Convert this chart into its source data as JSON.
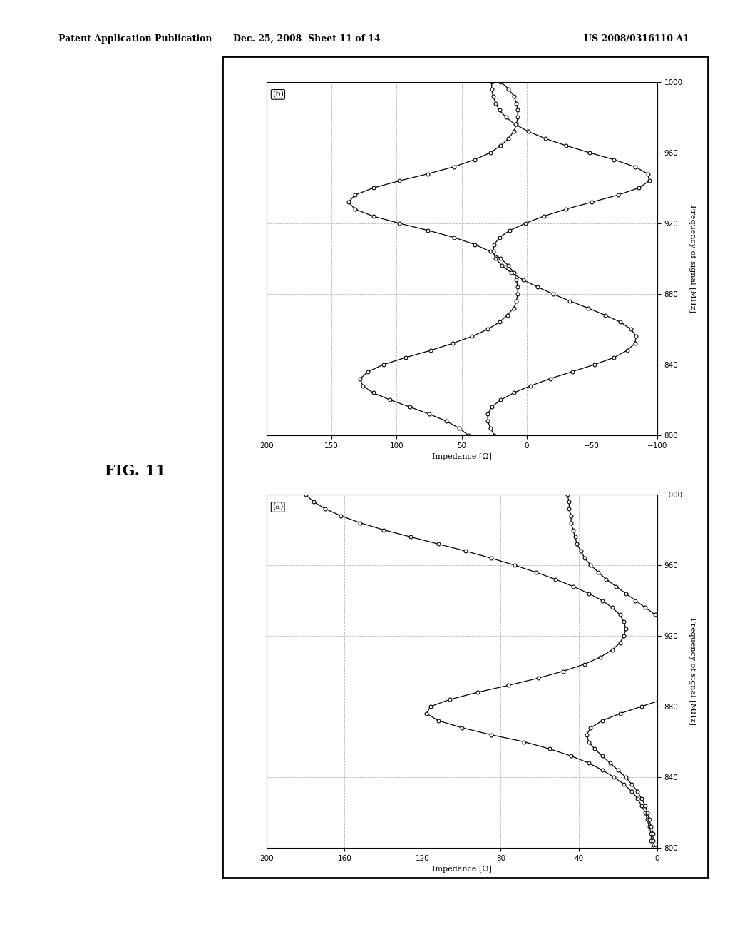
{
  "header_left": "Patent Application Publication",
  "header_mid": "Dec. 25, 2008  Sheet 11 of 14",
  "header_right": "US 2008/0316110 A1",
  "fig_label": "FIG. 11",
  "background_color": "#ffffff",
  "grid_color": "#999999",
  "freq_min": 800,
  "freq_max": 1000,
  "freq_ticks": [
    800,
    840,
    880,
    920,
    960,
    1000
  ],
  "x_label": "Frequency of signal [MHz]",
  "y_label": "Impedance [Ω]",
  "ylim_a": [
    0,
    200
  ],
  "ylim_b": [
    -100,
    200
  ],
  "yticks_a": [
    0,
    40,
    80,
    120,
    160,
    200
  ],
  "yticks_b": [
    -100,
    -50,
    0,
    50,
    100,
    150,
    200
  ],
  "freq_a": [
    800,
    804,
    808,
    812,
    816,
    820,
    824,
    828,
    832,
    836,
    840,
    844,
    848,
    852,
    856,
    860,
    864,
    868,
    872,
    876,
    880,
    884,
    888,
    892,
    896,
    900,
    904,
    908,
    912,
    916,
    920,
    924,
    928,
    932,
    936,
    940,
    944,
    948,
    952,
    956,
    960,
    964,
    968,
    972,
    976,
    980,
    984,
    988,
    992,
    996,
    1000
  ],
  "real_a": [
    2,
    3,
    3,
    4,
    5,
    6,
    8,
    10,
    13,
    17,
    22,
    28,
    35,
    44,
    55,
    68,
    85,
    100,
    112,
    118,
    116,
    106,
    92,
    76,
    61,
    48,
    37,
    29,
    23,
    19,
    17,
    16,
    17,
    19,
    23,
    28,
    35,
    43,
    52,
    62,
    73,
    85,
    98,
    112,
    126,
    140,
    152,
    162,
    170,
    176,
    180
  ],
  "imag_a": [
    1,
    2,
    2,
    3,
    4,
    5,
    6,
    8,
    10,
    13,
    16,
    20,
    24,
    28,
    32,
    35,
    36,
    34,
    28,
    19,
    8,
    -3,
    -13,
    -21,
    -26,
    -29,
    -29,
    -27,
    -24,
    -19,
    -14,
    -9,
    -4,
    1,
    6,
    11,
    16,
    21,
    26,
    30,
    34,
    37,
    39,
    41,
    42,
    43,
    44,
    44,
    45,
    45,
    46
  ],
  "freq_b": [
    800,
    804,
    808,
    812,
    816,
    820,
    824,
    828,
    832,
    836,
    840,
    844,
    848,
    852,
    856,
    860,
    864,
    868,
    872,
    876,
    880,
    884,
    888,
    892,
    896,
    900,
    904,
    908,
    912,
    916,
    920,
    924,
    928,
    932,
    936,
    940,
    944,
    948,
    952,
    956,
    960,
    964,
    968,
    972,
    976,
    980,
    984,
    988,
    992,
    996,
    1000
  ],
  "real_b": [
    45,
    52,
    62,
    75,
    90,
    105,
    118,
    126,
    128,
    122,
    110,
    93,
    74,
    57,
    42,
    30,
    21,
    15,
    10,
    8,
    7,
    7,
    8,
    10,
    14,
    20,
    28,
    40,
    56,
    76,
    98,
    118,
    132,
    137,
    132,
    118,
    98,
    76,
    56,
    40,
    28,
    20,
    14,
    10,
    8,
    7,
    7,
    8,
    10,
    14,
    20
  ],
  "imag_b": [
    25,
    28,
    30,
    30,
    27,
    20,
    10,
    -3,
    -18,
    -35,
    -52,
    -67,
    -77,
    -83,
    -84,
    -80,
    -72,
    -60,
    -47,
    -33,
    -20,
    -8,
    3,
    12,
    19,
    24,
    26,
    25,
    21,
    13,
    1,
    -13,
    -30,
    -50,
    -70,
    -86,
    -94,
    -93,
    -83,
    -67,
    -48,
    -30,
    -14,
    -1,
    9,
    16,
    21,
    24,
    26,
    27,
    27
  ]
}
